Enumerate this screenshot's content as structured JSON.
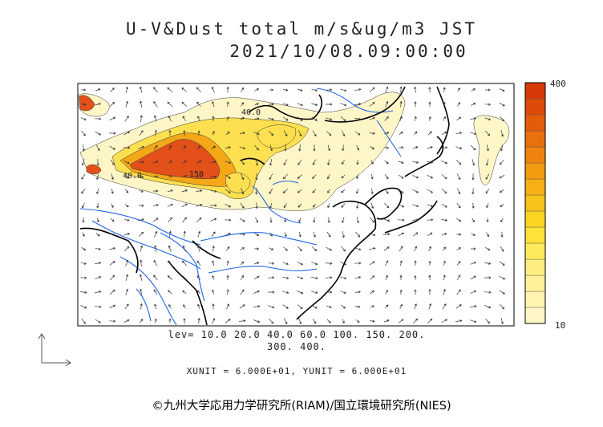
{
  "title": {
    "line1": "U-V&Dust total m/s&ug/m3 JST",
    "line2": "2021/10/08.09:00:00"
  },
  "levels": {
    "line1": "lev= 10.0 20.0 40.0 60.0 100. 150. 200.",
    "line2": "300. 400."
  },
  "units": "XUNIT = 6.000E+01, YUNIT = 6.000E+01",
  "copyright": "©九州大学応用力学研究所(RIAM)/国立環境研究所(NIES)",
  "colorbar": {
    "max_label": "400",
    "min_label": "10",
    "colors": [
      "#fff6c8",
      "#fff3b0",
      "#fff09a",
      "#ffed80",
      "#ffea5c",
      "#fde23a",
      "#fcd422",
      "#f9c218",
      "#f6b014",
      "#f29a10",
      "#ee840e",
      "#e9700c",
      "#e45c0a",
      "#de4a08",
      "#d63a06"
    ]
  },
  "map_labels": {
    "label_40_a": "40.0",
    "label_40_b": "40.0",
    "label_150": "150"
  },
  "colors": {
    "coast": "#000000",
    "river": "#1e64e6",
    "dust_light": "#fff6c8",
    "dust_mid": "#fce050",
    "dust_high": "#f08a10",
    "dust_max": "#e0501a"
  }
}
